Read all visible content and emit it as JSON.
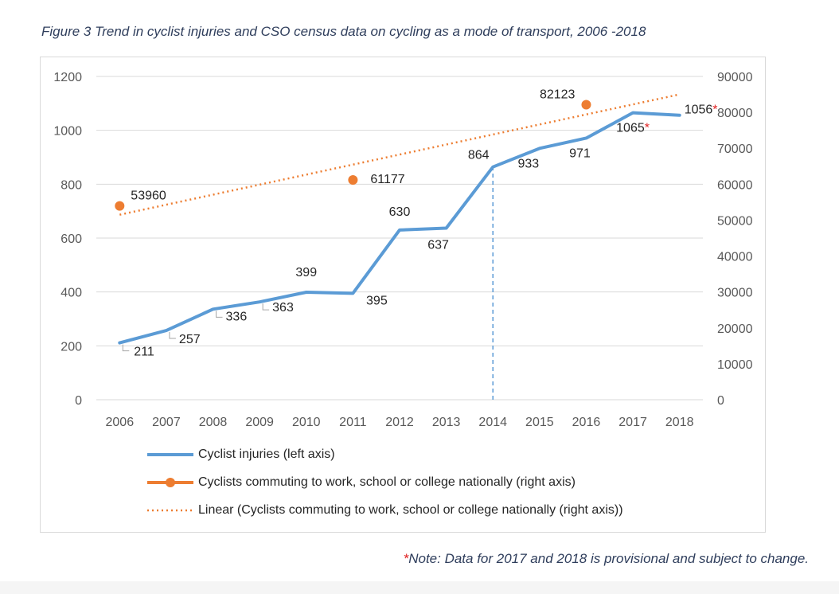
{
  "figure_title": "Figure 3  Trend in cyclist injuries and CSO census data on cycling as a mode of transport, 2006 -2018",
  "note_star": "*",
  "note_text": "Note: Data for 2017 and 2018 is provisional and subject to change.",
  "colors": {
    "injuries": "#5b9bd5",
    "commuting": "#ed7d31",
    "gridline": "#d9d9d9",
    "axis_text": "#595959",
    "label_text": "#262626",
    "star": "#e02020"
  },
  "chart_data": {
    "type": "line",
    "title": "",
    "x": [
      "2006",
      "2007",
      "2008",
      "2009",
      "2010",
      "2011",
      "2012",
      "2013",
      "2014",
      "2015",
      "2016",
      "2017",
      "2018"
    ],
    "y_left_ticks": [
      "0",
      "200",
      "400",
      "600",
      "800",
      "1000",
      "1200"
    ],
    "y_left_range": [
      0,
      1200
    ],
    "y_right_ticks": [
      "0",
      "10000",
      "20000",
      "30000",
      "40000",
      "50000",
      "60000",
      "70000",
      "80000",
      "90000"
    ],
    "y_right_range": [
      0,
      90000
    ],
    "grid": true,
    "legend_position": "bottom",
    "series": [
      {
        "name": "Cyclist injuries (left axis)",
        "axis": "left",
        "style": "solid-line",
        "values": [
          211,
          257,
          336,
          363,
          399,
          395,
          630,
          637,
          864,
          933,
          971,
          1065,
          1056
        ],
        "labels": [
          "211",
          "257",
          "336",
          "363",
          "399",
          "395",
          "630",
          "637",
          "864",
          "933",
          "971",
          "1065",
          "1056"
        ],
        "starred": [
          false,
          false,
          false,
          false,
          false,
          false,
          false,
          false,
          false,
          false,
          false,
          true,
          true
        ]
      },
      {
        "name": "Cyclists commuting to work, school or college nationally (right axis)",
        "axis": "right",
        "style": "markers",
        "x": [
          "2006",
          "2011",
          "2016"
        ],
        "values": [
          53960,
          61177,
          82123
        ],
        "labels": [
          "53960",
          "61177",
          "82123"
        ]
      },
      {
        "name": "Linear (Cyclists commuting to work, school or college nationally (right axis))",
        "axis": "right",
        "style": "dotted-trendline",
        "from": {
          "x": "2006",
          "value": 51500
        },
        "to": {
          "x": "2018",
          "value": 85000
        }
      }
    ],
    "annotations": [
      {
        "type": "vertical-dashed-line",
        "x": "2014",
        "from_value": 0,
        "to_value": 864
      }
    ]
  }
}
